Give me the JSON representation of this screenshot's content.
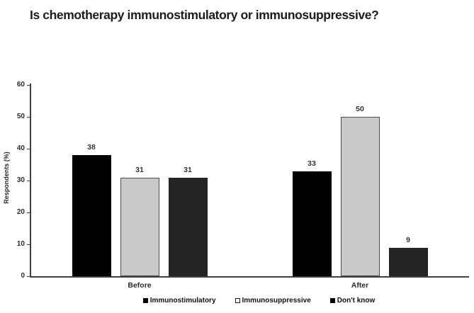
{
  "title": "Is chemotherapy immunostimulatory or immunosuppressive?",
  "chart_data": {
    "type": "bar",
    "title": "Is chemotherapy immunostimulatory or immunosuppressive?",
    "categories": [
      "Before",
      "After"
    ],
    "series": [
      {
        "name": "Immunostimulatory",
        "values": [
          38,
          33
        ],
        "color": "#000000",
        "border_color": "#000000",
        "legend_swatch": "filled"
      },
      {
        "name": "Immunosuppressive",
        "values": [
          31,
          50
        ],
        "color": "#c9c9c9",
        "border_color": "#4d4d4d",
        "legend_swatch": "outlined"
      },
      {
        "name": "Don't know",
        "values": [
          31,
          9
        ],
        "color": "#242424",
        "border_color": "#242424",
        "legend_swatch": "filled"
      }
    ],
    "xlabel": "",
    "ylabel": "Respondents (%)",
    "ylim": [
      0,
      60
    ],
    "yticks": [
      0,
      10,
      20,
      30,
      40,
      50,
      60
    ],
    "grid": false,
    "legend_position": "bottom",
    "bar_value_labels": true,
    "colors": {
      "axis": "#3f3f3f",
      "text": "#2b2b2b",
      "title_text": "#1c1c1c",
      "background": "#ffffff"
    }
  }
}
